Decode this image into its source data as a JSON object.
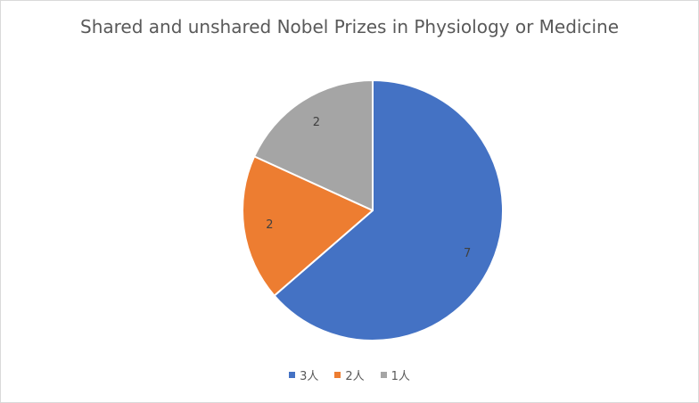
{
  "chart_data": {
    "type": "pie",
    "title": "Shared and unshared Nobel Prizes in Physiology or Medicine",
    "categories": [
      "3人",
      "2人",
      "1人"
    ],
    "values": [
      7,
      2,
      2
    ],
    "data_labels": [
      "7",
      "2",
      "2"
    ],
    "colors": [
      "#4472c4",
      "#ed7d31",
      "#a5a5a5"
    ],
    "legend_position": "bottom",
    "start_angle": "12 o'clock, clockwise"
  }
}
